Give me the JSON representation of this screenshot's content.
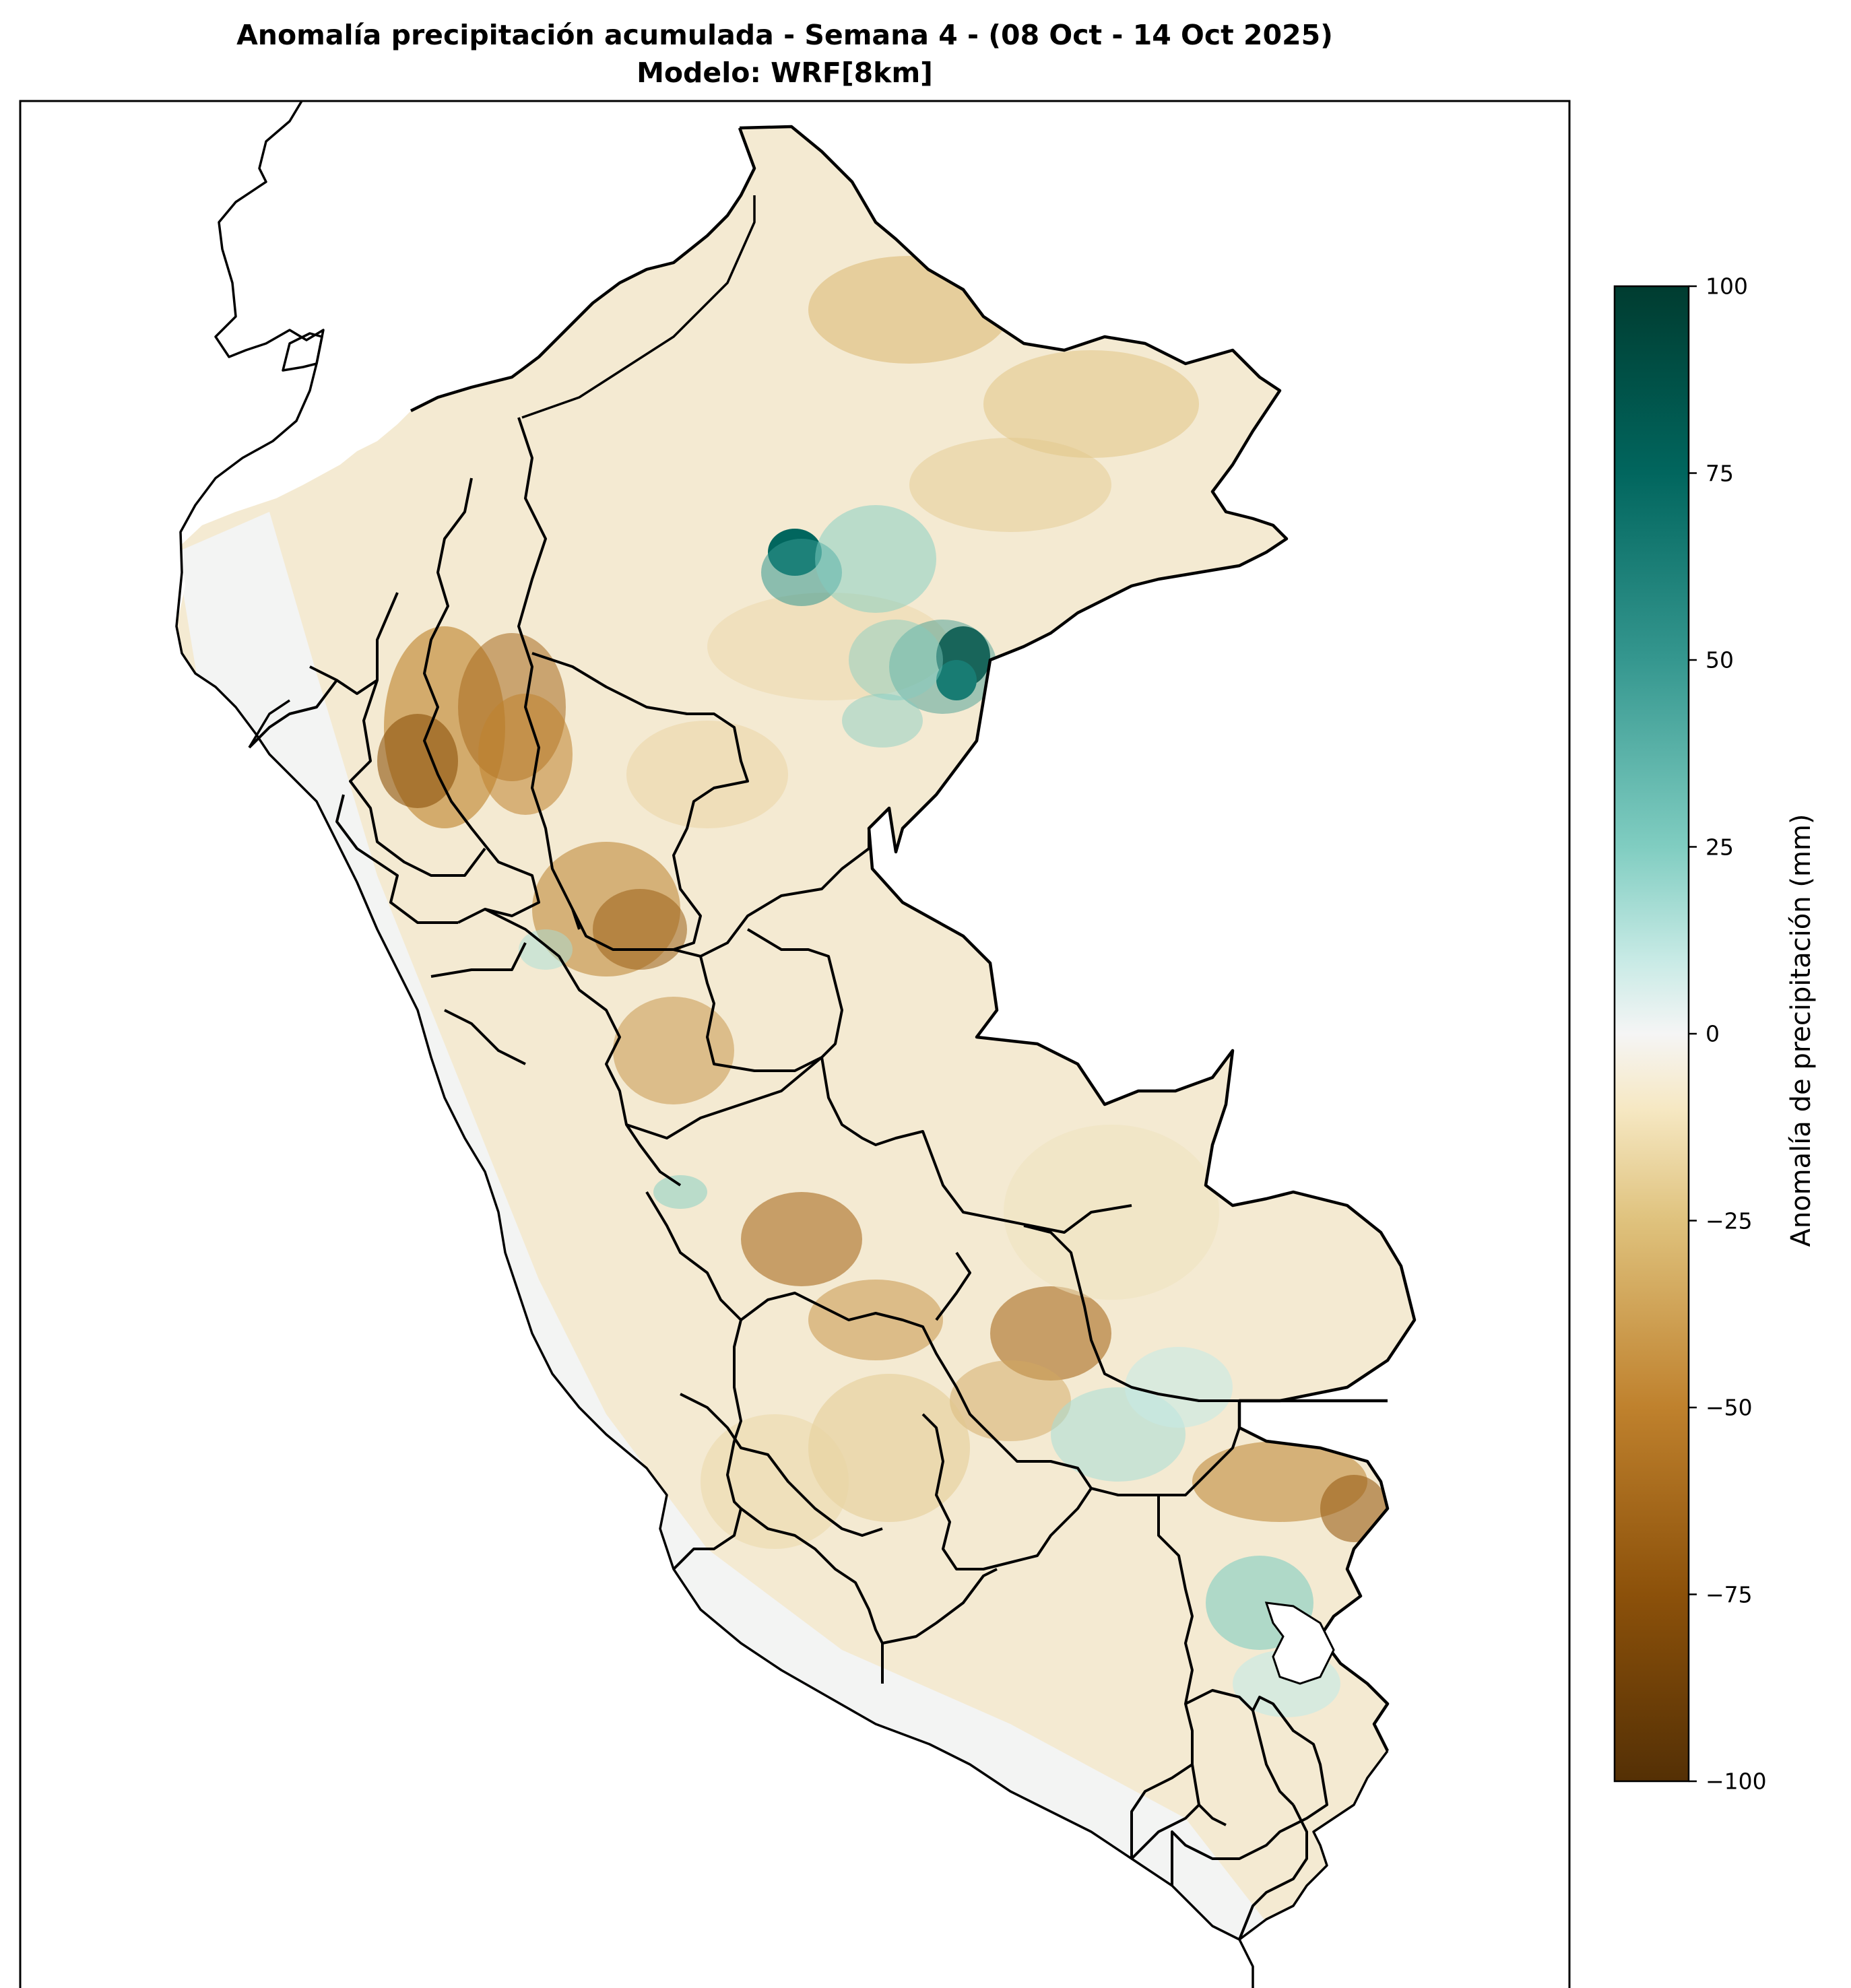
{
  "title": {
    "line1": "Anomalía precipitación acumulada - Semana 4 - (08 Oct - 14 Oct 2025)",
    "line2": "Modelo: WRF[8km]"
  },
  "colorbar": {
    "label": "Anomalía de precipitación (mm)",
    "colormap": "BrBG",
    "range": [
      -100,
      100
    ],
    "ticks": [
      {
        "value": 100,
        "label": "100"
      },
      {
        "value": 75,
        "label": "75"
      },
      {
        "value": 50,
        "label": "50"
      },
      {
        "value": 25,
        "label": "25"
      },
      {
        "value": 0,
        "label": "0"
      },
      {
        "value": -25,
        "label": "−25"
      },
      {
        "value": -50,
        "label": "−50"
      },
      {
        "value": -75,
        "label": "−75"
      },
      {
        "value": -100,
        "label": "−100"
      }
    ],
    "colors": {
      "-100": "#543005",
      "-75": "#8c510a",
      "-50": "#bf812d",
      "-25": "#dfc27d",
      "-10": "#f6e8c3",
      "0": "#f5f5f5",
      "10": "#c7eae5",
      "25": "#80cdc1",
      "50": "#35978f",
      "75": "#01665e",
      "100": "#003c30"
    }
  },
  "map": {
    "region": "Peru",
    "field": "accumulated precipitation anomaly (mm)",
    "ocean_color": "#ffffff",
    "coast_fill": "#f3f4f3",
    "border_color": "#000000"
  }
}
